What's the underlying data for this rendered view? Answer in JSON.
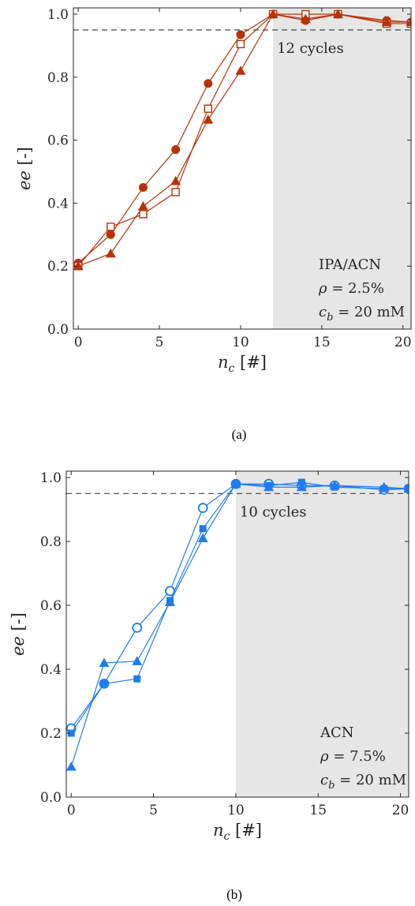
{
  "chart_data": [
    {
      "type": "line",
      "panel_label": "(a)",
      "xlabel": "n_c [#]",
      "ylabel": "ee [-]",
      "xlim": [
        -0.3,
        20.5
      ],
      "ylim": [
        0.0,
        1.02
      ],
      "xticks": [
        0,
        5,
        10,
        15,
        20
      ],
      "yticks": [
        0.0,
        0.2,
        0.4,
        0.6,
        0.8,
        1.0
      ],
      "ytick_labels": [
        "0.0",
        "0.2",
        "0.4",
        "0.6",
        "0.8",
        "1.0"
      ],
      "grid": false,
      "shaded_region": [
        12,
        20.5
      ],
      "threshold": 0.95,
      "cycle_annotation": "12 cycles",
      "info_lines": [
        "IPA/ACN",
        "ρ = 2.5%",
        "c_b = 20 mM"
      ],
      "color": "#b83208",
      "series": [
        {
          "marker": "circle-filled",
          "x": [
            0,
            2,
            4,
            6,
            8,
            10,
            12,
            14,
            16,
            19,
            20.5
          ],
          "values": [
            0.21,
            0.3,
            0.45,
            0.57,
            0.78,
            0.935,
            1.0,
            0.98,
            1.0,
            0.98,
            0.975
          ]
        },
        {
          "marker": "square-open",
          "x": [
            0,
            2,
            4,
            6,
            8,
            10,
            12,
            14,
            16,
            19,
            20.5
          ],
          "values": [
            0.2,
            0.325,
            0.365,
            0.435,
            0.7,
            0.905,
            1.0,
            1.0,
            1.0,
            0.97,
            0.97
          ]
        },
        {
          "marker": "triangle-filled",
          "x": [
            0,
            2,
            4,
            6,
            8,
            10,
            12,
            14,
            16,
            19,
            20.5
          ],
          "values": [
            0.2,
            0.24,
            0.39,
            0.47,
            0.665,
            0.82,
            1.0,
            0.985,
            1.0,
            0.975,
            0.975
          ]
        }
      ]
    },
    {
      "type": "line",
      "panel_label": "(b)",
      "xlabel": "n_c [#]",
      "ylabel": "ee [-]",
      "xlim": [
        -0.3,
        20.5
      ],
      "ylim": [
        0.0,
        1.02
      ],
      "xticks": [
        0,
        5,
        10,
        15,
        20
      ],
      "yticks": [
        0.0,
        0.2,
        0.4,
        0.6,
        0.8,
        1.0
      ],
      "ytick_labels": [
        "0.0",
        "0.2",
        "0.4",
        "0.6",
        "0.8",
        "1.0"
      ],
      "grid": false,
      "shaded_region": [
        10,
        20.5
      ],
      "threshold": 0.95,
      "cycle_annotation": "10 cycles",
      "info_lines": [
        "ACN",
        "ρ = 7.5%",
        "c_b = 20 mM"
      ],
      "color": "#1e7cf0",
      "series": [
        {
          "marker": "circle-open",
          "x": [
            0,
            2,
            4,
            6,
            8,
            10,
            12,
            14,
            16,
            19,
            20.5
          ],
          "values": [
            0.215,
            0.355,
            0.53,
            0.645,
            0.905,
            0.98,
            0.98,
            0.975,
            0.975,
            0.962,
            0.965
          ]
        },
        {
          "marker": "square-filled",
          "x": [
            0,
            2,
            4,
            6,
            8,
            10,
            12,
            14,
            16,
            19,
            20.5
          ],
          "values": [
            0.2,
            0.355,
            0.37,
            0.615,
            0.84,
            0.98,
            0.975,
            0.985,
            0.97,
            0.965,
            0.965
          ]
        },
        {
          "marker": "triangle-filled",
          "x": [
            0,
            2,
            4,
            6,
            8,
            10,
            12,
            14,
            16,
            19,
            20.5
          ],
          "values": [
            0.095,
            0.42,
            0.425,
            0.61,
            0.81,
            0.98,
            0.97,
            0.97,
            0.975,
            0.97,
            0.965
          ]
        }
      ]
    }
  ]
}
